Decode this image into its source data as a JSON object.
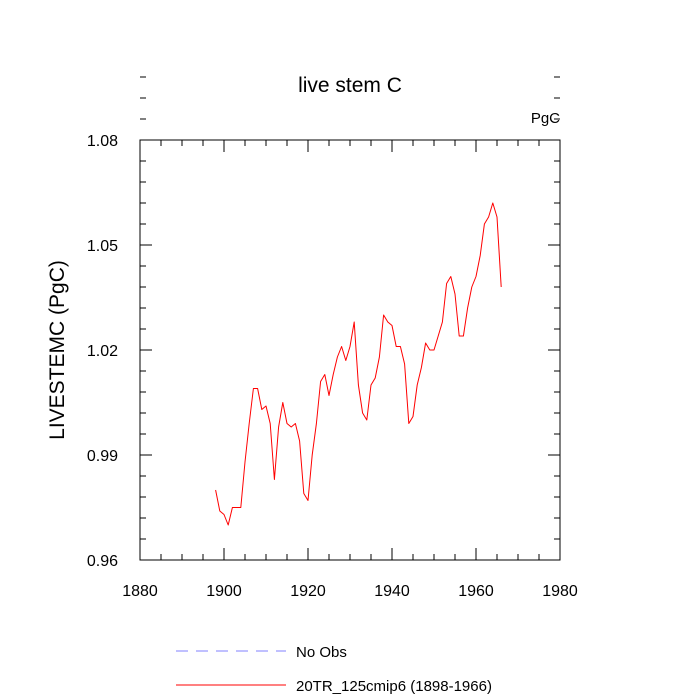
{
  "chart_data": {
    "type": "line",
    "title": "live stem C",
    "units_label": "PgC",
    "xlabel": "",
    "ylabel": "LIVESTEMC  (PgC)",
    "xlim": [
      1880,
      1980
    ],
    "ylim": [
      0.96,
      1.08
    ],
    "x_ticks": [
      1880,
      1900,
      1920,
      1940,
      1960,
      1980
    ],
    "x_tick_labels": [
      "1880",
      "1900",
      "1920",
      "1940",
      "1960",
      "1980"
    ],
    "y_ticks": [
      0.96,
      0.99,
      1.02,
      1.05,
      1.08
    ],
    "y_tick_labels": [
      "0.96",
      "0.99",
      "1.02",
      "1.05",
      "1.08"
    ],
    "grid": false,
    "legend_position": "bottom",
    "legend": [
      {
        "name": "No Obs",
        "color": "#8080ff",
        "dash": true
      },
      {
        "name": "20TR_125cmip6 (1898-1966)",
        "color": "#ff0000",
        "dash": false
      }
    ],
    "series": [
      {
        "name": "20TR_125cmip6 (1898-1966)",
        "color": "#ff0000",
        "x": [
          1898,
          1899,
          1900,
          1901,
          1902,
          1903,
          1904,
          1905,
          1906,
          1907,
          1908,
          1909,
          1910,
          1911,
          1912,
          1913,
          1914,
          1915,
          1916,
          1917,
          1918,
          1919,
          1920,
          1921,
          1922,
          1923,
          1924,
          1925,
          1926,
          1927,
          1928,
          1929,
          1930,
          1931,
          1932,
          1933,
          1934,
          1935,
          1936,
          1937,
          1938,
          1939,
          1940,
          1941,
          1942,
          1943,
          1944,
          1945,
          1946,
          1947,
          1948,
          1949,
          1950,
          1951,
          1952,
          1953,
          1954,
          1955,
          1956,
          1957,
          1958,
          1959,
          1960,
          1961,
          1962,
          1963,
          1964,
          1965,
          1966
        ],
        "values": [
          0.98,
          0.974,
          0.973,
          0.97,
          0.975,
          0.975,
          0.975,
          0.988,
          0.999,
          1.009,
          1.009,
          1.003,
          1.004,
          0.999,
          0.983,
          0.998,
          1.005,
          0.999,
          0.998,
          0.999,
          0.994,
          0.979,
          0.977,
          0.99,
          0.999,
          1.011,
          1.013,
          1.007,
          1.013,
          1.018,
          1.021,
          1.017,
          1.021,
          1.028,
          1.01,
          1.002,
          1.0,
          1.01,
          1.012,
          1.018,
          1.03,
          1.028,
          1.027,
          1.021,
          1.021,
          1.016,
          0.999,
          1.001,
          1.01,
          1.015,
          1.022,
          1.02,
          1.02,
          1.024,
          1.028,
          1.039,
          1.041,
          1.036,
          1.024,
          1.024,
          1.032,
          1.038,
          1.041,
          1.047,
          1.056,
          1.058,
          1.062,
          1.058,
          1.038
        ]
      }
    ]
  }
}
